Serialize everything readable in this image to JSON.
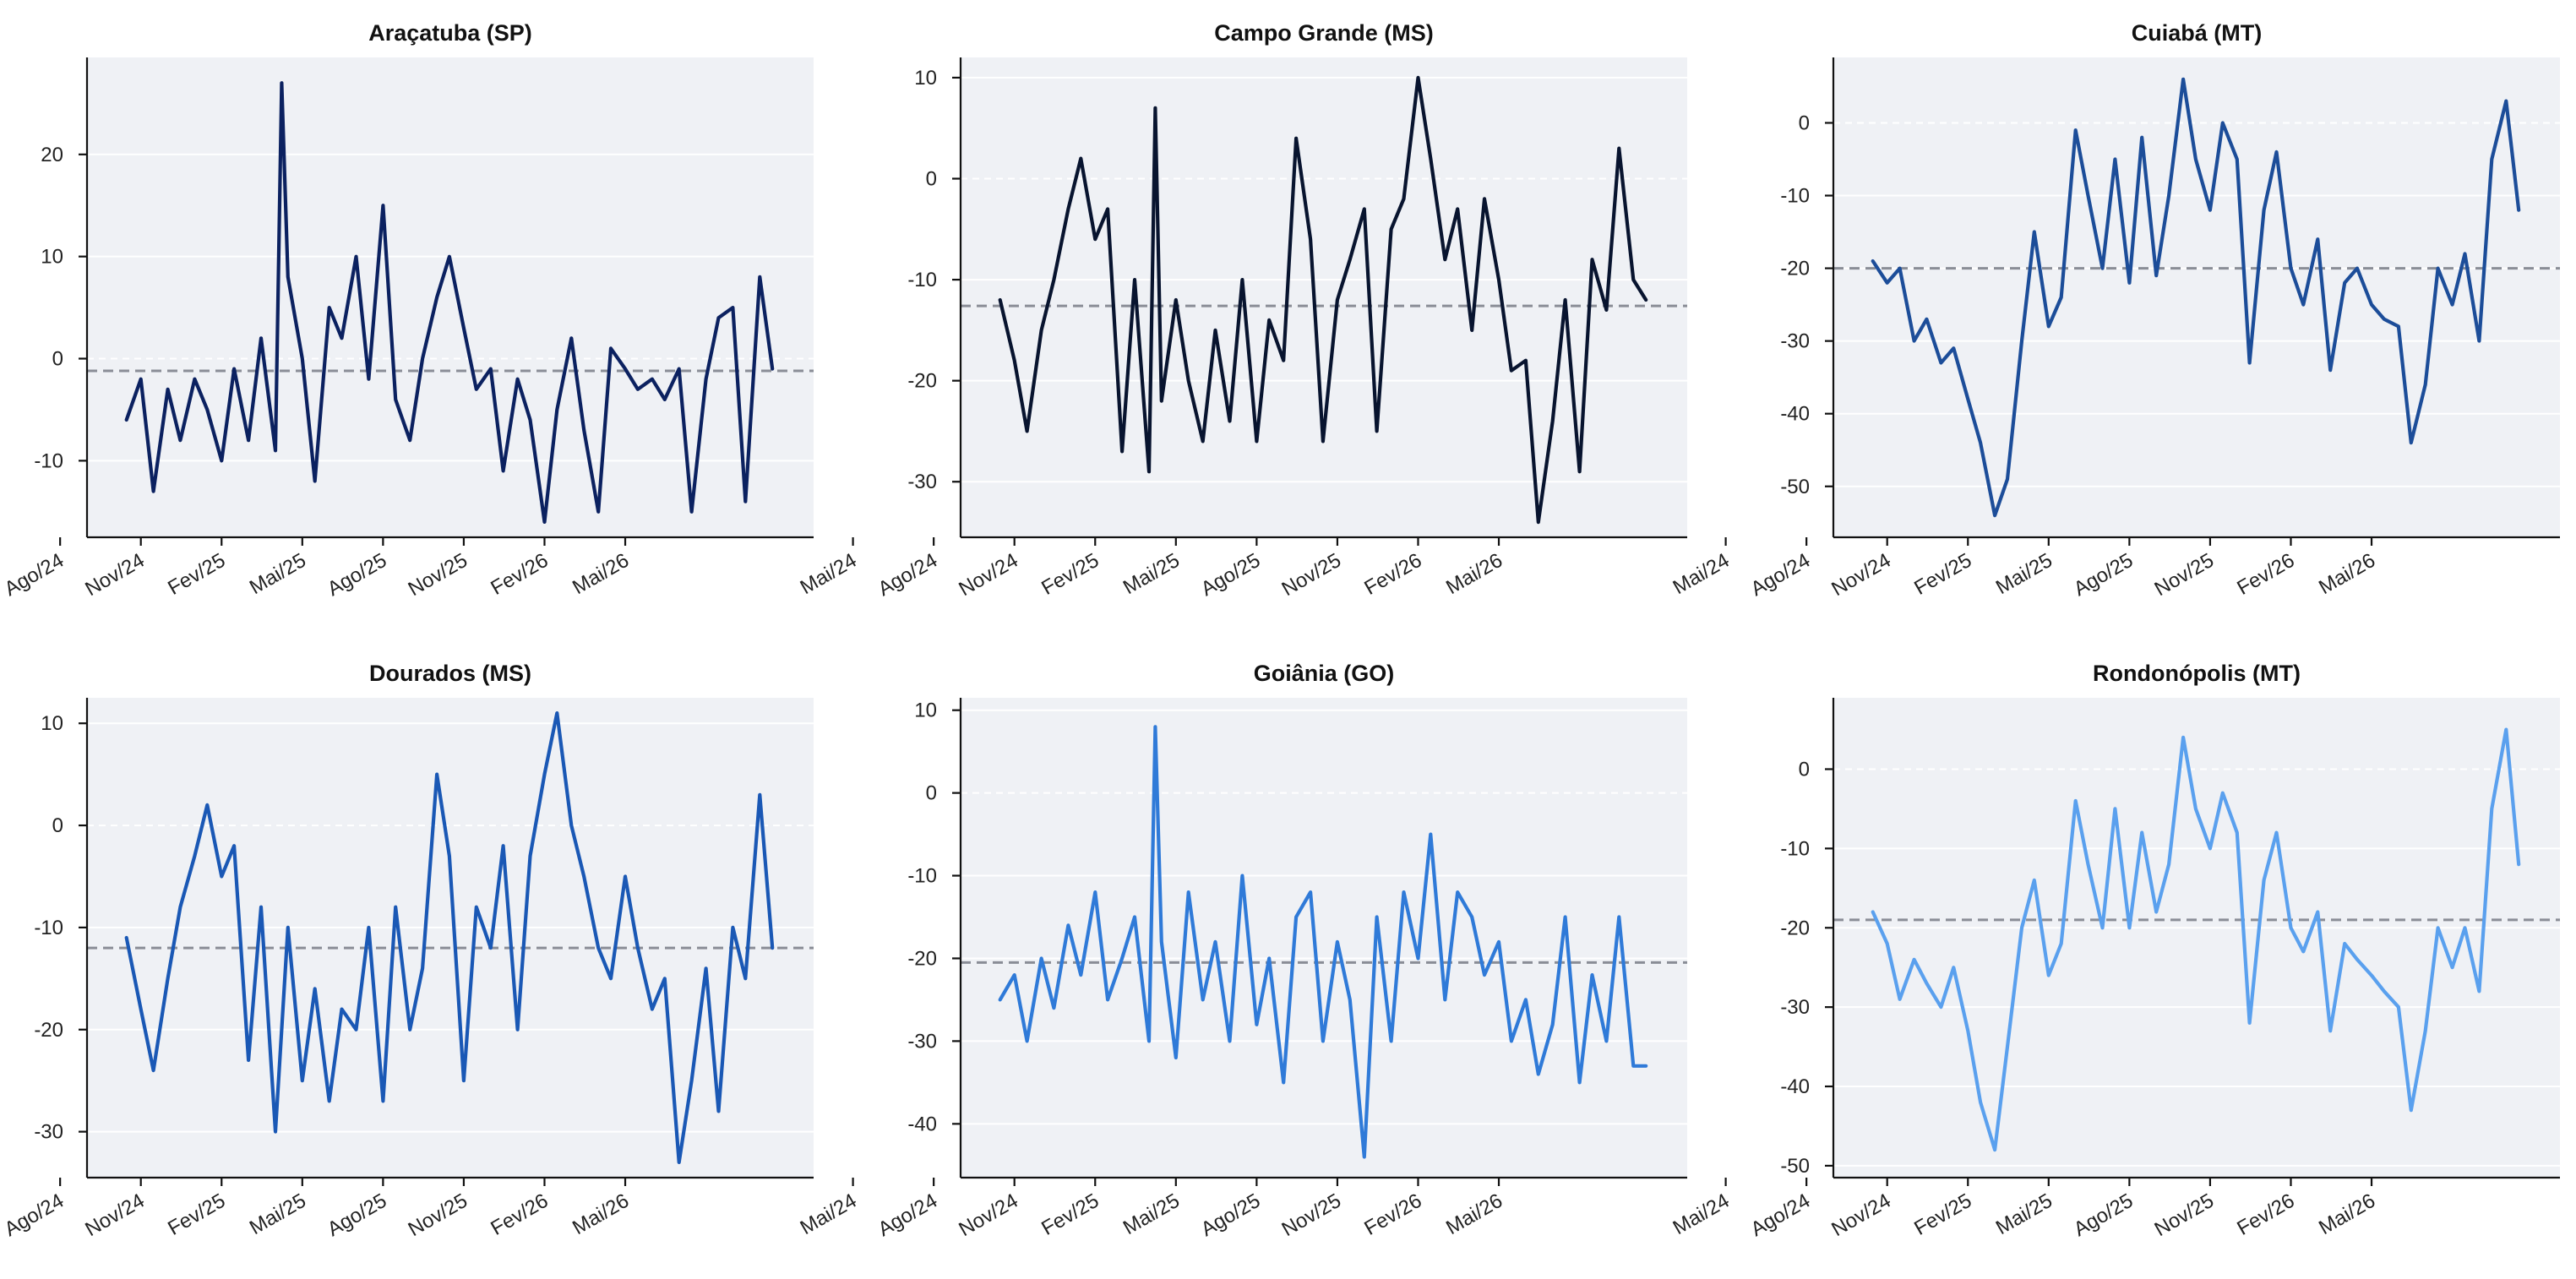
{
  "chart_data": [
    {
      "type": "line",
      "title": "Araçatuba (SP)",
      "xlabel": "",
      "ylabel": "",
      "x_tick_labels": [
        "Mai/24",
        "Ago/24",
        "Nov/24",
        "Fev/25",
        "Mai/25",
        "Ago/25",
        "Nov/25",
        "Fev/26",
        "Mai/26"
      ],
      "x_range": [
        "2024-05",
        "2026-08"
      ],
      "ylim": [
        -17.5,
        29.5
      ],
      "yticks": [
        -10,
        0,
        10,
        20
      ],
      "reference_line": -1.2,
      "grid": true,
      "color": "#0b2160",
      "series": [
        {
          "x": [
            "2024-06-15",
            "2024-07-01",
            "2024-07-15",
            "2024-08-01",
            "2024-08-15",
            "2024-09-01",
            "2024-09-15",
            "2024-10-01",
            "2024-10-15",
            "2024-11-01",
            "2024-11-15",
            "2024-12-01",
            "2024-12-08",
            "2024-12-15",
            "2025-01-01",
            "2025-01-15",
            "2025-02-01",
            "2025-02-15",
            "2025-03-01",
            "2025-03-15",
            "2025-04-01",
            "2025-04-15",
            "2025-05-01",
            "2025-05-15",
            "2025-06-01",
            "2025-06-15",
            "2025-07-01",
            "2025-07-15",
            "2025-08-01",
            "2025-08-15",
            "2025-09-01",
            "2025-09-15",
            "2025-10-01",
            "2025-10-15",
            "2025-11-01",
            "2025-11-15",
            "2025-12-01",
            "2025-12-15",
            "2026-01-01",
            "2026-01-15",
            "2026-02-01",
            "2026-02-15",
            "2026-03-01",
            "2026-03-15",
            "2026-04-01",
            "2026-04-15",
            "2026-05-01",
            "2026-05-15",
            "2026-06-01",
            "2026-06-15"
          ],
          "values": [
            -6,
            -2,
            -13,
            -3,
            -8,
            -2,
            -5,
            -10,
            -1,
            -8,
            2,
            -9,
            27,
            8,
            0,
            -12,
            5,
            2,
            10,
            -2,
            15,
            -4,
            -8,
            0,
            6,
            10,
            3,
            -3,
            -1,
            -11,
            -2,
            -6,
            -16,
            -5,
            2,
            -7,
            -15,
            1,
            -1,
            -3,
            -2,
            -4,
            -1,
            -15,
            -2,
            4,
            5,
            -14,
            8,
            -1
          ]
        }
      ]
    },
    {
      "type": "line",
      "title": "Campo Grande (MS)",
      "xlabel": "",
      "ylabel": "",
      "x_tick_labels": [
        "Mai/24",
        "Ago/24",
        "Nov/24",
        "Fev/25",
        "Mai/25",
        "Ago/25",
        "Nov/25",
        "Fev/26",
        "Mai/26"
      ],
      "x_range": [
        "2024-05",
        "2026-08"
      ],
      "ylim": [
        -35.5,
        12
      ],
      "yticks": [
        -30,
        -20,
        -10,
        0,
        10
      ],
      "reference_line": -12.6,
      "grid": true,
      "color": "#08142f",
      "series": [
        {
          "x": [
            "2024-06-15",
            "2024-07-01",
            "2024-07-15",
            "2024-08-01",
            "2024-08-15",
            "2024-09-01",
            "2024-09-15",
            "2024-10-01",
            "2024-10-15",
            "2024-11-01",
            "2024-11-15",
            "2024-12-01",
            "2024-12-08",
            "2024-12-15",
            "2025-01-01",
            "2025-01-15",
            "2025-02-01",
            "2025-02-15",
            "2025-03-01",
            "2025-03-15",
            "2025-04-01",
            "2025-04-15",
            "2025-05-01",
            "2025-05-15",
            "2025-06-01",
            "2025-06-15",
            "2025-07-01",
            "2025-07-15",
            "2025-08-01",
            "2025-08-15",
            "2025-09-01",
            "2025-09-15",
            "2025-10-01",
            "2025-10-15",
            "2025-11-01",
            "2025-11-15",
            "2025-12-01",
            "2025-12-15",
            "2026-01-01",
            "2026-01-15",
            "2026-02-01",
            "2026-02-15",
            "2026-03-01",
            "2026-03-15",
            "2026-04-01",
            "2026-04-15",
            "2026-05-01",
            "2026-05-15",
            "2026-06-01",
            "2026-06-15"
          ],
          "values": [
            -12,
            -18,
            -25,
            -15,
            -10,
            -3,
            2,
            -6,
            -3,
            -27,
            -10,
            -29,
            7,
            -22,
            -12,
            -20,
            -26,
            -15,
            -24,
            -10,
            -26,
            -14,
            -18,
            4,
            -6,
            -26,
            -12,
            -8,
            -3,
            -25,
            -5,
            -2,
            10,
            2,
            -8,
            -3,
            -15,
            -2,
            -10,
            -19,
            -18,
            -34,
            -24,
            -12,
            -29,
            -8,
            -13,
            3,
            -10,
            -12
          ]
        }
      ]
    },
    {
      "type": "line",
      "title": "Cuiabá (MT)",
      "xlabel": "",
      "ylabel": "",
      "x_tick_labels": [
        "Mai/24",
        "Ago/24",
        "Nov/24",
        "Fev/25",
        "Mai/25",
        "Ago/25",
        "Nov/25",
        "Fev/26",
        "Mai/26"
      ],
      "x_range": [
        "2024-05",
        "2026-08"
      ],
      "ylim": [
        -57,
        9
      ],
      "yticks": [
        -50,
        -40,
        -30,
        -20,
        -10,
        0
      ],
      "reference_line": -20,
      "grid": true,
      "color": "#1c4d99",
      "series": [
        {
          "x": [
            "2024-06-15",
            "2024-07-01",
            "2024-07-15",
            "2024-08-01",
            "2024-08-15",
            "2024-09-01",
            "2024-09-15",
            "2024-10-01",
            "2024-10-15",
            "2024-11-01",
            "2024-11-15",
            "2024-12-01",
            "2024-12-15",
            "2025-01-01",
            "2025-01-15",
            "2025-02-01",
            "2025-02-15",
            "2025-03-01",
            "2025-03-15",
            "2025-04-01",
            "2025-04-15",
            "2025-05-01",
            "2025-05-15",
            "2025-06-01",
            "2025-06-15",
            "2025-07-01",
            "2025-07-15",
            "2025-08-01",
            "2025-08-15",
            "2025-09-01",
            "2025-09-15",
            "2025-10-01",
            "2025-10-15",
            "2025-11-01",
            "2025-11-15",
            "2025-12-01",
            "2025-12-15",
            "2026-01-01",
            "2026-01-15",
            "2026-02-01",
            "2026-02-15",
            "2026-03-01",
            "2026-03-15",
            "2026-04-01",
            "2026-04-15",
            "2026-05-01",
            "2026-05-15",
            "2026-06-01",
            "2026-06-15"
          ],
          "values": [
            -19,
            -22,
            -20,
            -30,
            -27,
            -33,
            -31,
            -38,
            -44,
            -54,
            -49,
            -30,
            -15,
            -28,
            -24,
            -1,
            -10,
            -20,
            -5,
            -22,
            -2,
            -21,
            -10,
            6,
            -5,
            -12,
            0,
            -5,
            -33,
            -12,
            -4,
            -20,
            -25,
            -16,
            -34,
            -22,
            -20,
            -25,
            -27,
            -28,
            -44,
            -36,
            -20,
            -25,
            -18,
            -30,
            -5,
            3,
            -12
          ]
        }
      ]
    },
    {
      "type": "line",
      "title": "Dourados (MS)",
      "xlabel": "",
      "ylabel": "",
      "x_tick_labels": [
        "Mai/24",
        "Ago/24",
        "Nov/24",
        "Fev/25",
        "Mai/25",
        "Ago/25",
        "Nov/25",
        "Fev/26",
        "Mai/26"
      ],
      "x_range": [
        "2024-05",
        "2026-08"
      ],
      "ylim": [
        -34.5,
        12.5
      ],
      "yticks": [
        -30,
        -20,
        -10,
        0,
        10
      ],
      "reference_line": -12,
      "grid": true,
      "color": "#1a58b5",
      "series": [
        {
          "x": [
            "2024-06-15",
            "2024-07-01",
            "2024-07-15",
            "2024-08-01",
            "2024-08-15",
            "2024-09-01",
            "2024-09-15",
            "2024-10-01",
            "2024-10-15",
            "2024-11-01",
            "2024-11-15",
            "2024-12-01",
            "2024-12-15",
            "2025-01-01",
            "2025-01-15",
            "2025-02-01",
            "2025-02-15",
            "2025-03-01",
            "2025-03-15",
            "2025-04-01",
            "2025-04-15",
            "2025-05-01",
            "2025-05-15",
            "2025-06-01",
            "2025-06-15",
            "2025-07-01",
            "2025-07-15",
            "2025-08-01",
            "2025-08-15",
            "2025-09-01",
            "2025-09-15",
            "2025-10-01",
            "2025-10-15",
            "2025-11-01",
            "2025-11-15",
            "2025-12-01",
            "2025-12-15",
            "2026-01-01",
            "2026-01-15",
            "2026-02-01",
            "2026-02-15",
            "2026-03-01",
            "2026-03-15",
            "2026-04-01",
            "2026-04-15",
            "2026-05-01",
            "2026-05-15",
            "2026-06-01",
            "2026-06-15"
          ],
          "values": [
            -11,
            -18,
            -24,
            -15,
            -8,
            -3,
            2,
            -5,
            -2,
            -23,
            -8,
            -30,
            -10,
            -25,
            -16,
            -27,
            -18,
            -20,
            -10,
            -27,
            -8,
            -20,
            -14,
            5,
            -3,
            -25,
            -8,
            -12,
            -2,
            -20,
            -3,
            5,
            11,
            0,
            -5,
            -12,
            -15,
            -5,
            -12,
            -18,
            -15,
            -33,
            -25,
            -14,
            -28,
            -10,
            -15,
            3,
            -12
          ]
        }
      ]
    },
    {
      "type": "line",
      "title": "Goiânia (GO)",
      "xlabel": "",
      "ylabel": "",
      "x_tick_labels": [
        "Mai/24",
        "Ago/24",
        "Nov/24",
        "Fev/25",
        "Mai/25",
        "Ago/25",
        "Nov/25",
        "Fev/26",
        "Mai/26"
      ],
      "x_range": [
        "2024-05",
        "2026-08"
      ],
      "ylim": [
        -46.5,
        11.5
      ],
      "yticks": [
        -40,
        -30,
        -20,
        -10,
        0,
        10
      ],
      "reference_line": -20.5,
      "grid": true,
      "color": "#2f7ad8",
      "series": [
        {
          "x": [
            "2024-06-15",
            "2024-07-01",
            "2024-07-15",
            "2024-08-01",
            "2024-08-15",
            "2024-09-01",
            "2024-09-15",
            "2024-10-01",
            "2024-10-15",
            "2024-11-01",
            "2024-11-15",
            "2024-12-01",
            "2024-12-08",
            "2024-12-15",
            "2025-01-01",
            "2025-01-15",
            "2025-02-01",
            "2025-02-15",
            "2025-03-01",
            "2025-03-15",
            "2025-04-01",
            "2025-04-15",
            "2025-05-01",
            "2025-05-15",
            "2025-06-01",
            "2025-06-15",
            "2025-07-01",
            "2025-07-15",
            "2025-08-01",
            "2025-08-15",
            "2025-09-01",
            "2025-09-15",
            "2025-10-01",
            "2025-10-15",
            "2025-11-01",
            "2025-11-15",
            "2025-12-01",
            "2025-12-15",
            "2026-01-01",
            "2026-01-15",
            "2026-02-01",
            "2026-02-15",
            "2026-03-01",
            "2026-03-15",
            "2026-04-01",
            "2026-04-15",
            "2026-05-01",
            "2026-05-15",
            "2026-06-01",
            "2026-06-15"
          ],
          "values": [
            -25,
            -22,
            -30,
            -20,
            -26,
            -16,
            -22,
            -12,
            -25,
            -20,
            -15,
            -30,
            8,
            -18,
            -32,
            -12,
            -25,
            -18,
            -30,
            -10,
            -28,
            -20,
            -35,
            -15,
            -12,
            -30,
            -18,
            -25,
            -44,
            -15,
            -30,
            -12,
            -20,
            -5,
            -25,
            -12,
            -15,
            -22,
            -18,
            -30,
            -25,
            -34,
            -28,
            -15,
            -35,
            -22,
            -30,
            -15,
            -33,
            -33
          ]
        }
      ]
    },
    {
      "type": "line",
      "title": "Rondonópolis (MT)",
      "xlabel": "",
      "ylabel": "",
      "x_tick_labels": [
        "Mai/24",
        "Ago/24",
        "Nov/24",
        "Fev/25",
        "Mai/25",
        "Ago/25",
        "Nov/25",
        "Fev/26",
        "Mai/26"
      ],
      "x_range": [
        "2024-05",
        "2026-08"
      ],
      "ylim": [
        -51.5,
        9
      ],
      "yticks": [
        -50,
        -40,
        -30,
        -20,
        -10,
        0
      ],
      "reference_line": -19,
      "grid": true,
      "color": "#5aa0ee",
      "series": [
        {
          "x": [
            "2024-06-15",
            "2024-07-01",
            "2024-07-15",
            "2024-08-01",
            "2024-08-15",
            "2024-09-01",
            "2024-09-15",
            "2024-10-01",
            "2024-10-15",
            "2024-11-01",
            "2024-11-15",
            "2024-12-01",
            "2024-12-15",
            "2025-01-01",
            "2025-01-15",
            "2025-02-01",
            "2025-02-15",
            "2025-03-01",
            "2025-03-15",
            "2025-04-01",
            "2025-04-15",
            "2025-05-01",
            "2025-05-15",
            "2025-06-01",
            "2025-06-15",
            "2025-07-01",
            "2025-07-15",
            "2025-08-01",
            "2025-08-15",
            "2025-09-01",
            "2025-09-15",
            "2025-10-01",
            "2025-10-15",
            "2025-11-01",
            "2025-11-15",
            "2025-12-01",
            "2025-12-15",
            "2026-01-01",
            "2026-01-15",
            "2026-02-01",
            "2026-02-15",
            "2026-03-01",
            "2026-03-15",
            "2026-04-01",
            "2026-04-15",
            "2026-05-01",
            "2026-05-15",
            "2026-06-01",
            "2026-06-15"
          ],
          "values": [
            -18,
            -22,
            -29,
            -24,
            -27,
            -30,
            -25,
            -33,
            -42,
            -48,
            -35,
            -20,
            -14,
            -26,
            -22,
            -4,
            -12,
            -20,
            -5,
            -20,
            -8,
            -18,
            -12,
            4,
            -5,
            -10,
            -3,
            -8,
            -32,
            -14,
            -8,
            -20,
            -23,
            -18,
            -33,
            -22,
            -24,
            -26,
            -28,
            -30,
            -43,
            -33,
            -20,
            -25,
            -20,
            -28,
            -5,
            5,
            -12
          ]
        }
      ]
    }
  ]
}
